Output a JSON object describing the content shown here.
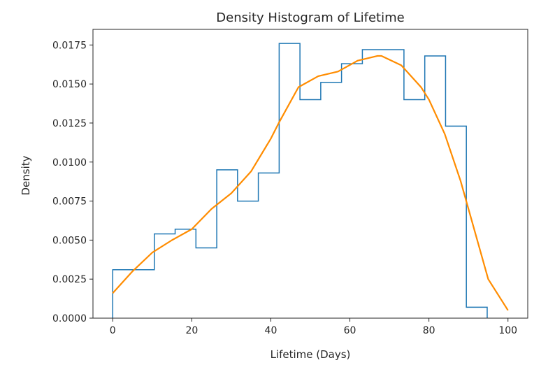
{
  "chart_data": {
    "type": "histogram",
    "title": "Density Histogram of Lifetime",
    "xlabel": "Lifetime (Days)",
    "ylabel": "Density",
    "xlim": [
      -5,
      105
    ],
    "ylim": [
      0,
      0.0185
    ],
    "xticks": [
      0,
      20,
      40,
      60,
      80,
      100
    ],
    "xtick_labels": [
      "0",
      "20",
      "40",
      "60",
      "80",
      "100"
    ],
    "yticks": [
      0,
      0.0025,
      0.005,
      0.0075,
      0.01,
      0.0125,
      0.015,
      0.0175
    ],
    "ytick_labels": [
      "0.0000",
      "0.0025",
      "0.0050",
      "0.0075",
      "0.0100",
      "0.0125",
      "0.0150",
      "0.0175"
    ],
    "grid": false,
    "series": [
      {
        "kind": "step-histogram",
        "color": "#1f77b4",
        "bin_edges": [
          0,
          5.26,
          10.53,
          15.79,
          21.05,
          26.32,
          31.58,
          36.84,
          42.11,
          47.37,
          52.63,
          57.89,
          63.16,
          68.42,
          73.68,
          78.95,
          84.21,
          89.47,
          94.74
        ],
        "values": [
          0.0031,
          0.0031,
          0.0054,
          0.0057,
          0.0045,
          0.0095,
          0.0075,
          0.0093,
          0.0176,
          0.014,
          0.0151,
          0.0163,
          0.0172,
          0.0172,
          0.014,
          0.0168,
          0.0123,
          0.0007
        ]
      },
      {
        "kind": "line",
        "color": "#ff8c00",
        "x": [
          0,
          5,
          10,
          15,
          20,
          25,
          30,
          35,
          40,
          42,
          47,
          52,
          57,
          62,
          67,
          68,
          73,
          78,
          80,
          84,
          88,
          90,
          95,
          100
        ],
        "y": [
          0.0016,
          0.003,
          0.0042,
          0.005,
          0.0057,
          0.007,
          0.008,
          0.0094,
          0.0115,
          0.0125,
          0.0148,
          0.0155,
          0.0158,
          0.0165,
          0.0168,
          0.0168,
          0.0162,
          0.0148,
          0.014,
          0.0118,
          0.0088,
          0.007,
          0.0025,
          0.0005
        ]
      }
    ]
  }
}
